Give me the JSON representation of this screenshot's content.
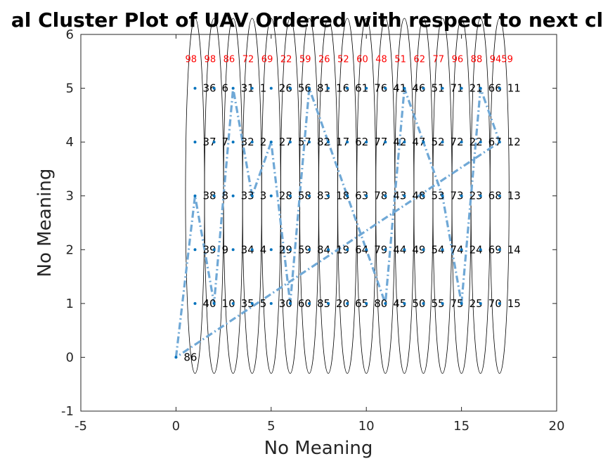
{
  "chart_data": {
    "type": "scatter",
    "title": "al Cluster Plot of UAV Ordered with respect to next cl",
    "xlabel": "No Meaning",
    "ylabel": "No Meaning",
    "xlim": [
      -5,
      20
    ],
    "ylim": [
      -1,
      6
    ],
    "x_ticks": [
      "-5",
      "0",
      "5",
      "10",
      "15",
      "20"
    ],
    "y_ticks": [
      "-1",
      "0",
      "1",
      "2",
      "3",
      "4",
      "5",
      "6"
    ],
    "grid": false,
    "colors": {
      "points": "#0072bd",
      "path": "#6fa8d6",
      "ellipse": "#000000",
      "cluster_label": "#ff0000",
      "text": "#000000"
    },
    "points": [
      {
        "x": 0,
        "y": 0,
        "label": "86"
      },
      {
        "x": 1,
        "y": 5,
        "label": "36"
      },
      {
        "x": 1,
        "y": 4,
        "label": "37"
      },
      {
        "x": 1,
        "y": 3,
        "label": "38"
      },
      {
        "x": 1,
        "y": 2,
        "label": "39"
      },
      {
        "x": 1,
        "y": 1,
        "label": "40"
      },
      {
        "x": 2,
        "y": 5,
        "label": "6"
      },
      {
        "x": 2,
        "y": 4,
        "label": "7"
      },
      {
        "x": 2,
        "y": 3,
        "label": "8"
      },
      {
        "x": 2,
        "y": 2,
        "label": "9"
      },
      {
        "x": 2,
        "y": 1,
        "label": "10"
      },
      {
        "x": 3,
        "y": 5,
        "label": "31"
      },
      {
        "x": 3,
        "y": 4,
        "label": "32"
      },
      {
        "x": 3,
        "y": 3,
        "label": "33"
      },
      {
        "x": 3,
        "y": 2,
        "label": "34"
      },
      {
        "x": 3,
        "y": 1,
        "label": "35"
      },
      {
        "x": 4,
        "y": 5,
        "label": "1"
      },
      {
        "x": 4,
        "y": 4,
        "label": "2"
      },
      {
        "x": 4,
        "y": 3,
        "label": "3"
      },
      {
        "x": 4,
        "y": 2,
        "label": "4"
      },
      {
        "x": 4,
        "y": 1,
        "label": "5"
      },
      {
        "x": 5,
        "y": 5,
        "label": "26"
      },
      {
        "x": 5,
        "y": 4,
        "label": "27"
      },
      {
        "x": 5,
        "y": 3,
        "label": "28"
      },
      {
        "x": 5,
        "y": 2,
        "label": "29"
      },
      {
        "x": 5,
        "y": 1,
        "label": "30"
      },
      {
        "x": 6,
        "y": 5,
        "label": "56"
      },
      {
        "x": 6,
        "y": 4,
        "label": "57"
      },
      {
        "x": 6,
        "y": 3,
        "label": "58"
      },
      {
        "x": 6,
        "y": 2,
        "label": "59"
      },
      {
        "x": 6,
        "y": 1,
        "label": "60"
      },
      {
        "x": 7,
        "y": 5,
        "label": "81"
      },
      {
        "x": 7,
        "y": 4,
        "label": "82"
      },
      {
        "x": 7,
        "y": 3,
        "label": "83"
      },
      {
        "x": 7,
        "y": 2,
        "label": "84"
      },
      {
        "x": 7,
        "y": 1,
        "label": "85"
      },
      {
        "x": 8,
        "y": 5,
        "label": "16"
      },
      {
        "x": 8,
        "y": 4,
        "label": "17"
      },
      {
        "x": 8,
        "y": 3,
        "label": "18"
      },
      {
        "x": 8,
        "y": 2,
        "label": "19"
      },
      {
        "x": 8,
        "y": 1,
        "label": "20"
      },
      {
        "x": 9,
        "y": 5,
        "label": "61"
      },
      {
        "x": 9,
        "y": 4,
        "label": "62"
      },
      {
        "x": 9,
        "y": 3,
        "label": "63"
      },
      {
        "x": 9,
        "y": 2,
        "label": "64"
      },
      {
        "x": 9,
        "y": 1,
        "label": "65"
      },
      {
        "x": 10,
        "y": 5,
        "label": "76"
      },
      {
        "x": 10,
        "y": 4,
        "label": "77"
      },
      {
        "x": 10,
        "y": 3,
        "label": "78"
      },
      {
        "x": 10,
        "y": 2,
        "label": "79"
      },
      {
        "x": 10,
        "y": 1,
        "label": "80"
      },
      {
        "x": 11,
        "y": 5,
        "label": "41"
      },
      {
        "x": 11,
        "y": 4,
        "label": "42"
      },
      {
        "x": 11,
        "y": 3,
        "label": "43"
      },
      {
        "x": 11,
        "y": 2,
        "label": "44"
      },
      {
        "x": 11,
        "y": 1,
        "label": "45"
      },
      {
        "x": 12,
        "y": 5,
        "label": "46"
      },
      {
        "x": 12,
        "y": 4,
        "label": "47"
      },
      {
        "x": 12,
        "y": 3,
        "label": "48"
      },
      {
        "x": 12,
        "y": 2,
        "label": "49"
      },
      {
        "x": 12,
        "y": 1,
        "label": "50"
      },
      {
        "x": 13,
        "y": 5,
        "label": "51"
      },
      {
        "x": 13,
        "y": 4,
        "label": "52"
      },
      {
        "x": 13,
        "y": 3,
        "label": "53"
      },
      {
        "x": 13,
        "y": 2,
        "label": "54"
      },
      {
        "x": 13,
        "y": 1,
        "label": "55"
      },
      {
        "x": 14,
        "y": 5,
        "label": "71"
      },
      {
        "x": 14,
        "y": 4,
        "label": "72"
      },
      {
        "x": 14,
        "y": 3,
        "label": "73"
      },
      {
        "x": 14,
        "y": 2,
        "label": "74"
      },
      {
        "x": 14,
        "y": 1,
        "label": "75"
      },
      {
        "x": 15,
        "y": 5,
        "label": "21"
      },
      {
        "x": 15,
        "y": 4,
        "label": "22"
      },
      {
        "x": 15,
        "y": 3,
        "label": "23"
      },
      {
        "x": 15,
        "y": 2,
        "label": "24"
      },
      {
        "x": 15,
        "y": 1,
        "label": "25"
      },
      {
        "x": 16,
        "y": 5,
        "label": "66"
      },
      {
        "x": 16,
        "y": 4,
        "label": "67"
      },
      {
        "x": 16,
        "y": 3,
        "label": "68"
      },
      {
        "x": 16,
        "y": 2,
        "label": "69"
      },
      {
        "x": 16,
        "y": 1,
        "label": "70"
      },
      {
        "x": 17,
        "y": 5,
        "label": "11"
      },
      {
        "x": 17,
        "y": 4,
        "label": "12"
      },
      {
        "x": 17,
        "y": 3,
        "label": "13"
      },
      {
        "x": 17,
        "y": 2,
        "label": "14"
      },
      {
        "x": 17,
        "y": 1,
        "label": "15"
      }
    ],
    "path": [
      [
        0,
        0
      ],
      [
        1,
        3
      ],
      [
        2,
        1
      ],
      [
        3,
        5
      ],
      [
        4,
        3
      ],
      [
        5,
        4
      ],
      [
        6,
        1
      ],
      [
        7,
        5
      ],
      [
        9,
        3
      ],
      [
        10,
        2
      ],
      [
        11,
        1
      ],
      [
        12,
        5
      ],
      [
        13,
        4
      ],
      [
        14,
        3
      ],
      [
        15,
        1
      ],
      [
        16,
        5
      ],
      [
        17,
        4
      ],
      [
        0,
        0
      ]
    ],
    "clusters": [
      {
        "x": 1,
        "label": "98"
      },
      {
        "x": 2,
        "label": "98"
      },
      {
        "x": 3,
        "label": "86"
      },
      {
        "x": 4,
        "label": "72"
      },
      {
        "x": 5,
        "label": "69"
      },
      {
        "x": 6,
        "label": "22"
      },
      {
        "x": 7,
        "label": "59"
      },
      {
        "x": 8,
        "label": "26"
      },
      {
        "x": 9,
        "label": "52"
      },
      {
        "x": 10,
        "label": "60"
      },
      {
        "x": 11,
        "label": "48"
      },
      {
        "x": 12,
        "label": "51"
      },
      {
        "x": 13,
        "label": "62"
      },
      {
        "x": 14,
        "label": "77"
      },
      {
        "x": 15,
        "label": "96"
      },
      {
        "x": 16,
        "label": "88"
      },
      {
        "x": 17,
        "label": "9459"
      }
    ],
    "cluster_ry": 3.3
  }
}
